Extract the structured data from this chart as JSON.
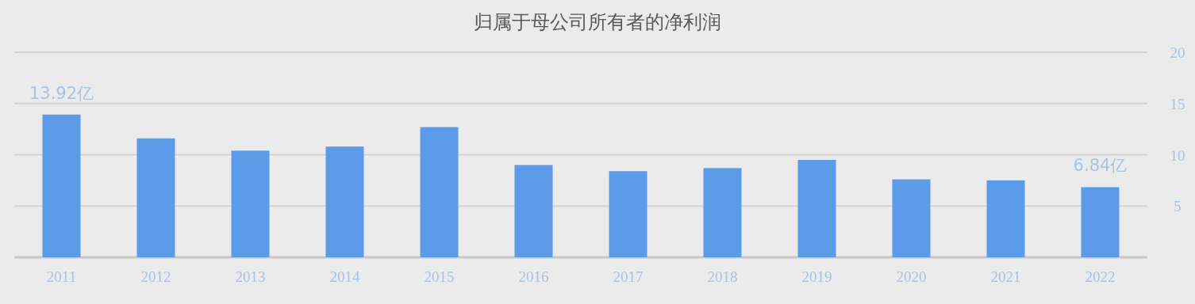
{
  "chart_data": {
    "type": "bar",
    "title": "归属于母公司所有者的净利润",
    "categories": [
      "2011",
      "2012",
      "2013",
      "2014",
      "2015",
      "2016",
      "2017",
      "2018",
      "2019",
      "2020",
      "2021",
      "2022"
    ],
    "values": [
      13.92,
      11.6,
      10.4,
      10.8,
      12.7,
      9.0,
      8.4,
      8.7,
      9.5,
      7.6,
      7.5,
      6.84
    ],
    "value_labels": [
      "13.92亿",
      null,
      null,
      null,
      null,
      null,
      null,
      null,
      null,
      null,
      null,
      "6.84亿"
    ],
    "color": "#5b9be8",
    "ylim": [
      0,
      20
    ],
    "yticks": [
      {
        "value": 0,
        "label": null
      },
      5,
      10,
      15,
      20
    ],
    "grid": "y"
  }
}
